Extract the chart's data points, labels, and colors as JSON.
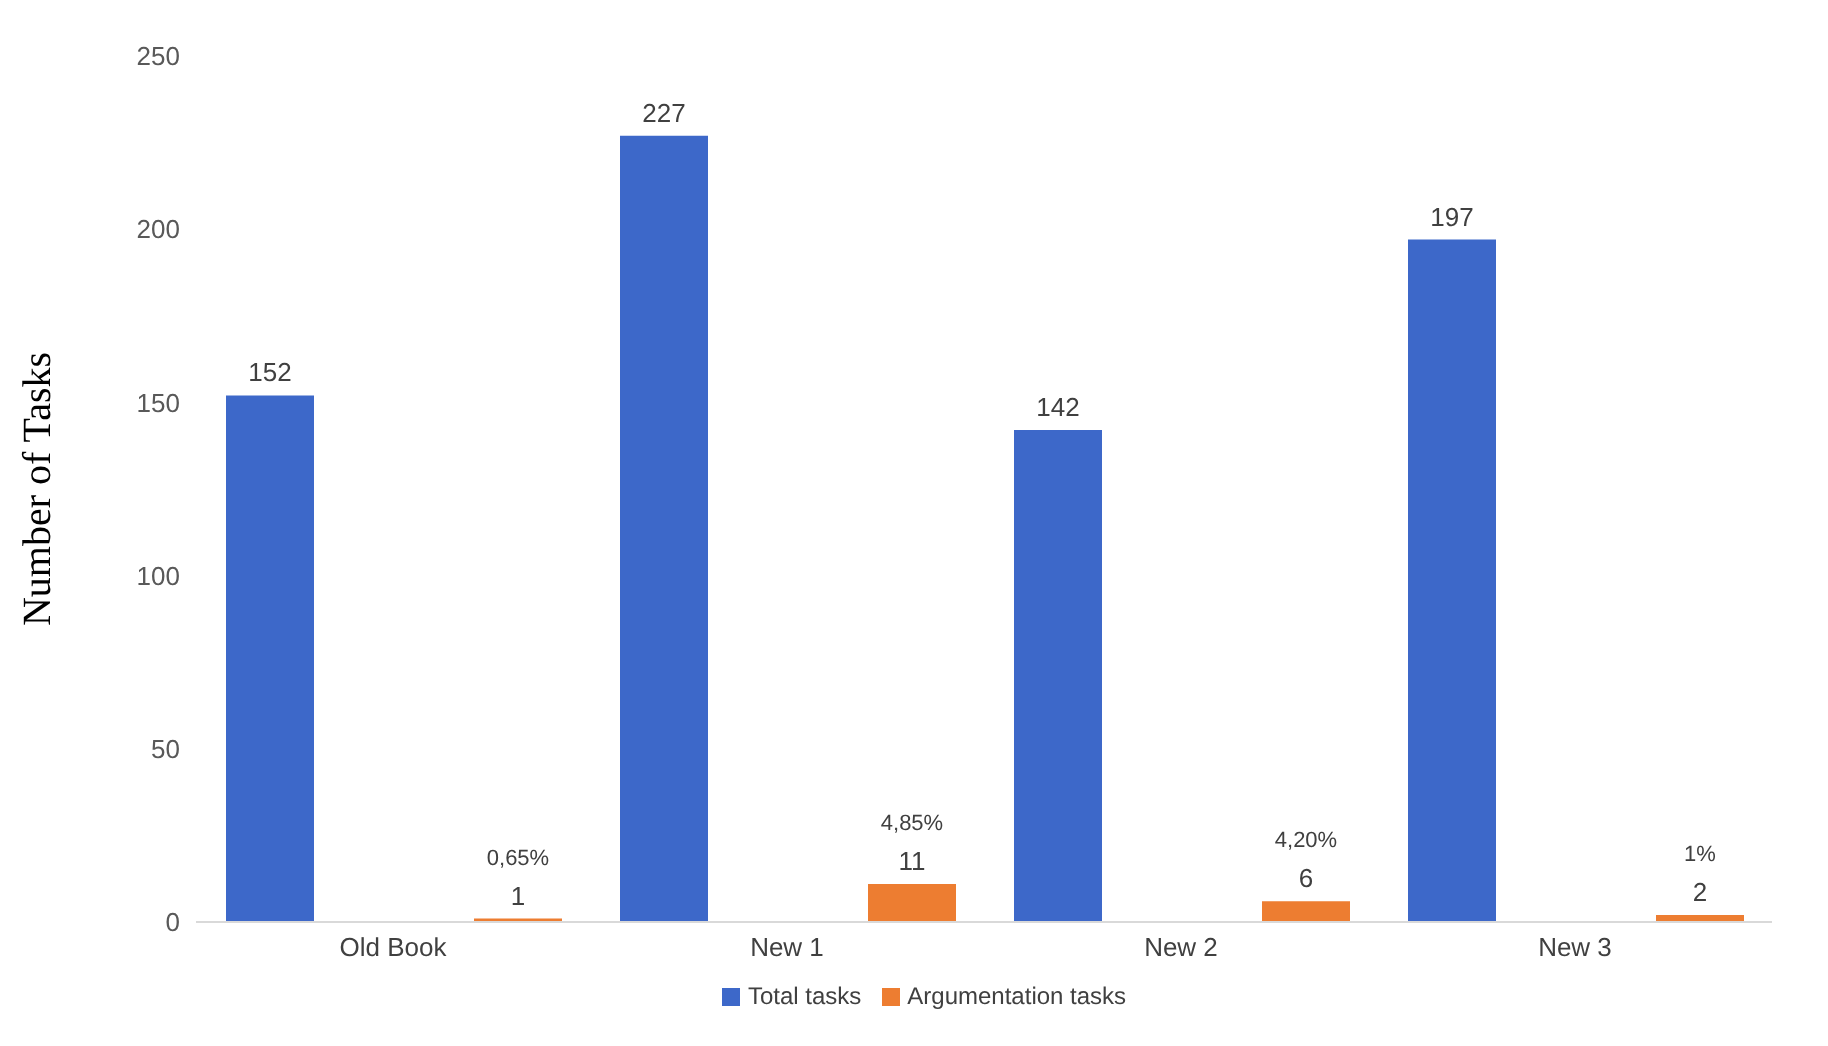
{
  "chart_data": {
    "type": "bar",
    "ylabel": "Number of Tasks",
    "categories": [
      "Old Book",
      "New 1",
      "New 2",
      "New 3"
    ],
    "series": [
      {
        "name": "Total tasks",
        "color": "#3d68c9",
        "values": [
          152,
          227,
          142,
          197
        ]
      },
      {
        "name": "Argumentation tasks",
        "color": "#ed7d31",
        "values": [
          1,
          11,
          6,
          2
        ]
      }
    ],
    "ylim": [
      0,
      250
    ],
    "yticks": [
      0,
      50,
      100,
      150,
      200,
      250
    ],
    "data_labels": true,
    "legend": "bottom",
    "grid": false,
    "annotations": [
      "0,65%",
      "4,85%",
      "4,20%",
      "1%"
    ]
  }
}
